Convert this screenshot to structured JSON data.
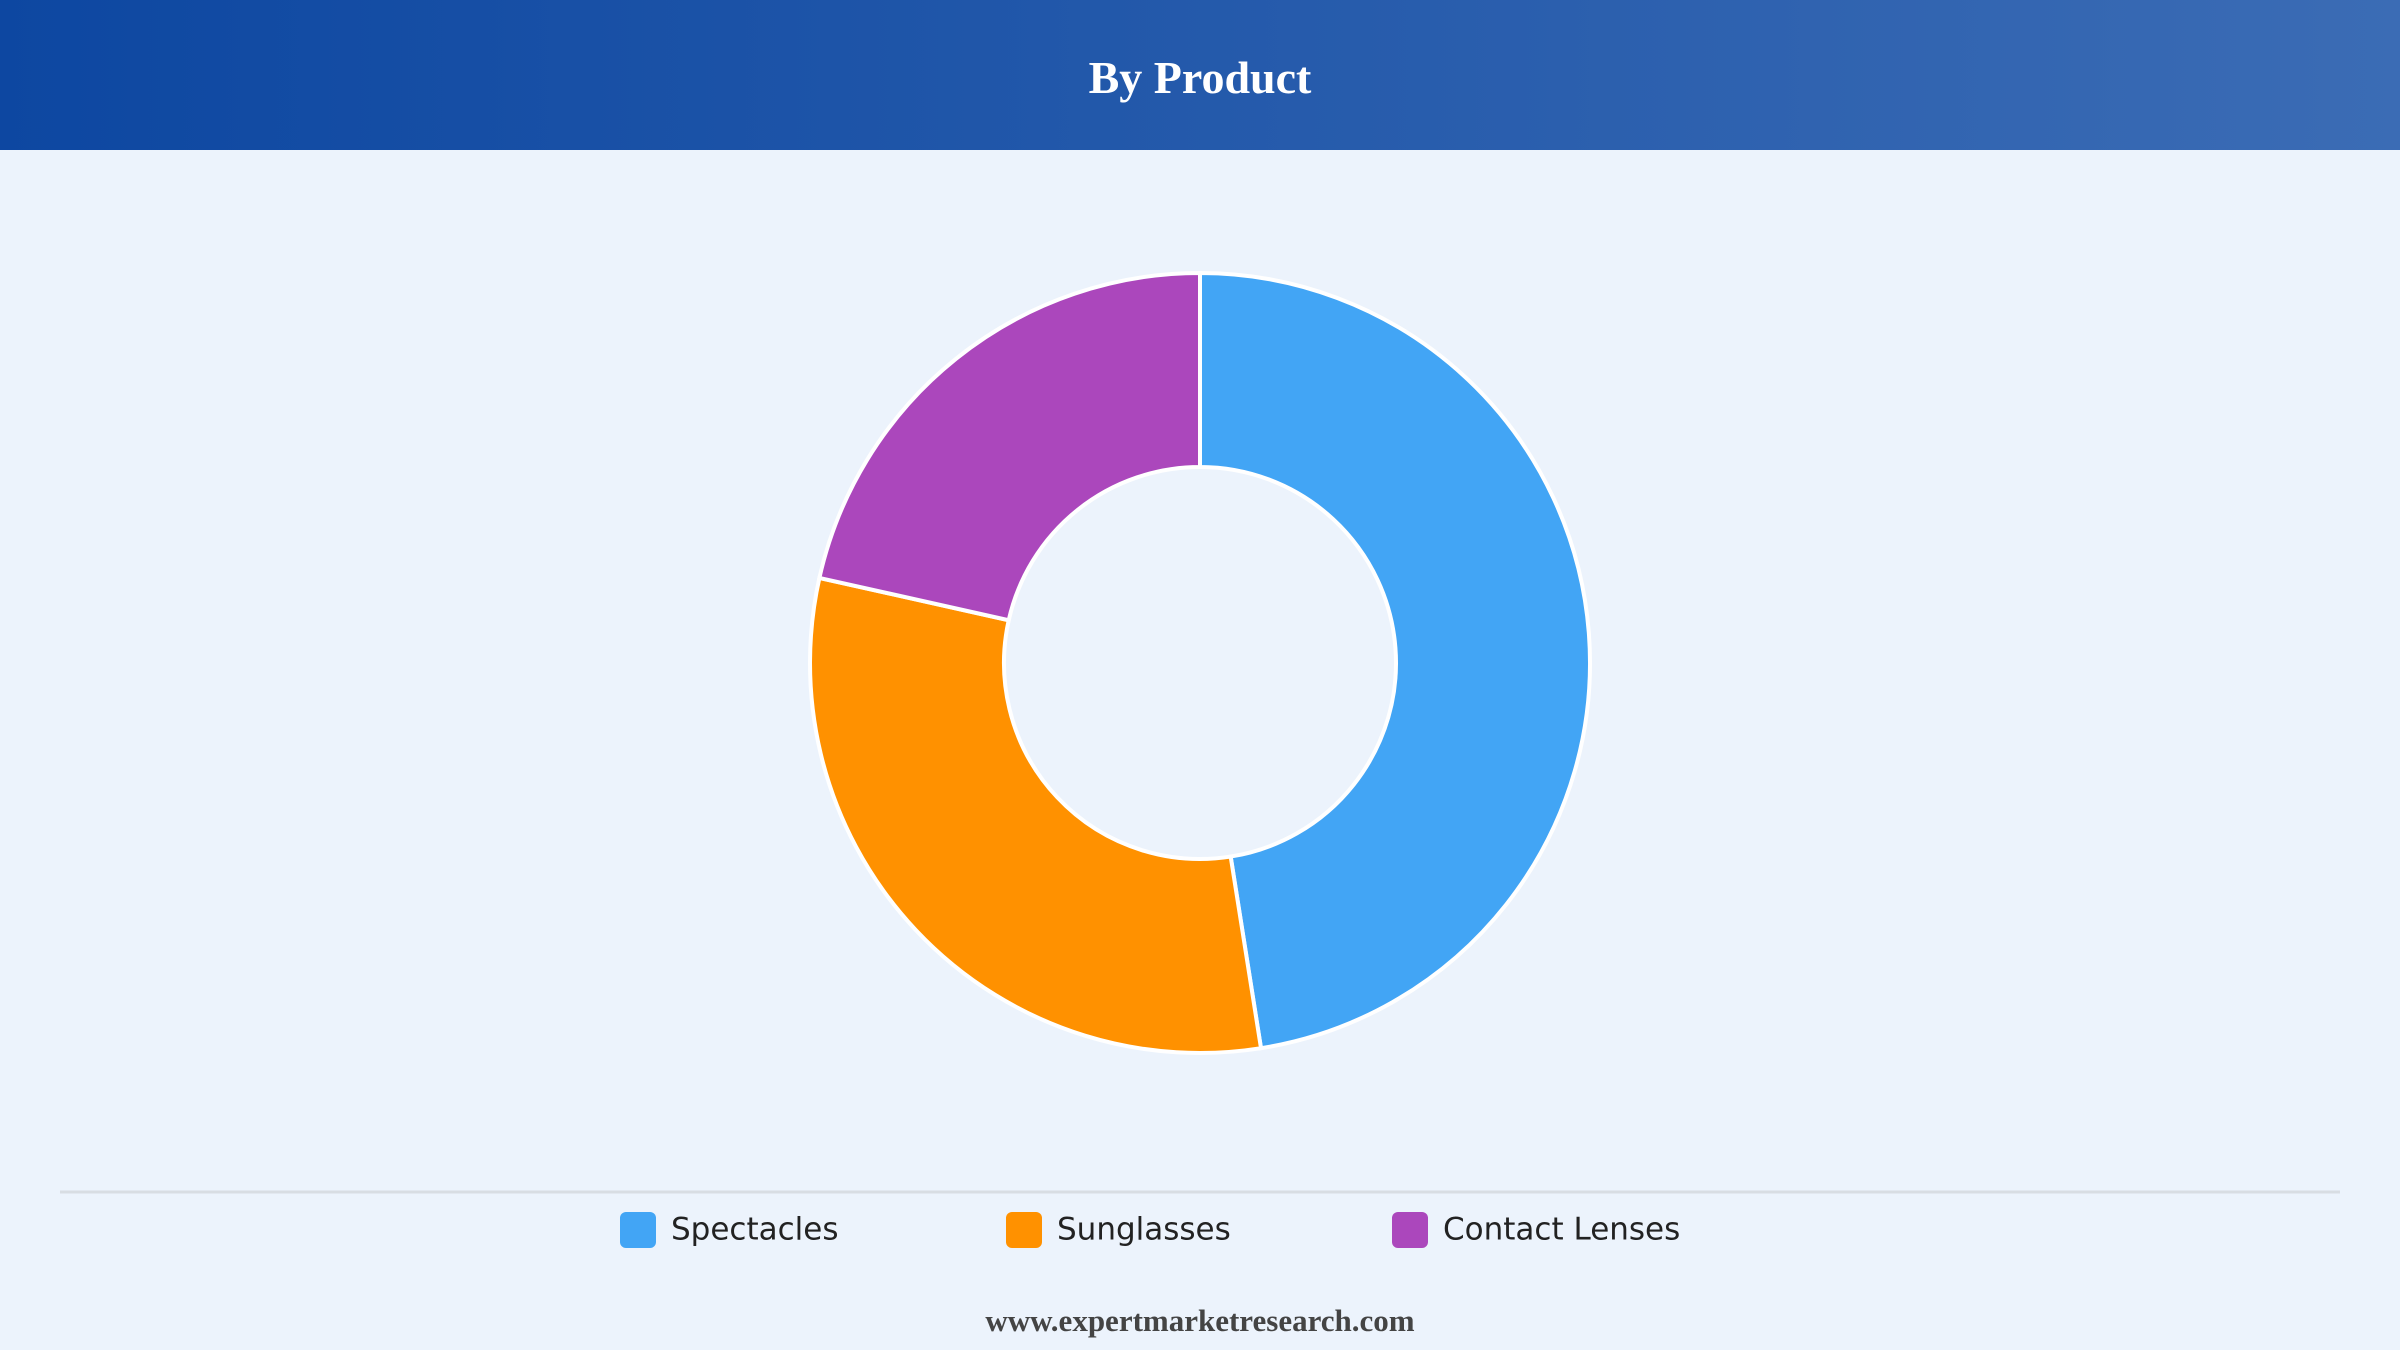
{
  "chart_data": {
    "type": "donut",
    "title": "By Product",
    "categories": [
      "Spectacles",
      "Sunglasses",
      "Contact Lenses"
    ],
    "values": [
      47.5,
      31,
      21.5
    ],
    "colors": [
      "#42a5f5",
      "#ff9100",
      "#ab47bc"
    ]
  },
  "footer": "www.expertmarketresearch.com"
}
